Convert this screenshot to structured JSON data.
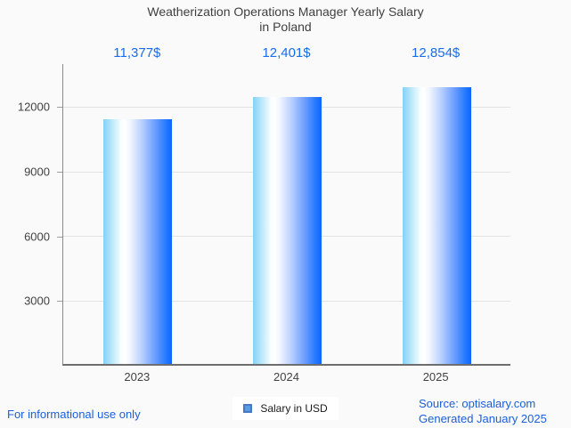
{
  "title": {
    "line1": "Weatherization Operations Manager Yearly Salary",
    "line2": "in Poland"
  },
  "chart_data": {
    "type": "bar",
    "categories": [
      "2023",
      "2024",
      "2025"
    ],
    "values": [
      11377,
      12401,
      12854
    ],
    "value_labels": [
      "11,377$",
      "12,401$",
      "12,854$"
    ],
    "series": [
      {
        "name": "Salary in USD",
        "values": [
          11377,
          12401,
          12854
        ]
      }
    ],
    "title": "Weatherization Operations Manager Yearly Salary in Poland",
    "xlabel": "",
    "ylabel": "",
    "yticks": [
      3000,
      6000,
      9000,
      12000
    ],
    "y_axis_max": 14000,
    "grid": true,
    "legend_position": "bottom-center"
  },
  "legend": {
    "label": "Salary in USD"
  },
  "footer": {
    "informational": "For informational use only",
    "source_line1": "Source: optisalary.com",
    "source_line2": "Generated January 2025"
  },
  "colors": {
    "accent_blue": "#1a6ce8",
    "footer_blue": "#1a5fdb",
    "text_dark": "#3f3f3f",
    "gridline": "#e3e3e3",
    "axis": "#8a8a8a",
    "legend_swatch_fill": "#5b9be0",
    "legend_swatch_border": "#4a78c2",
    "bar_gradient_stops": [
      "#82d2f6 0%",
      "#f8feff 26%",
      "#ffffff 32%",
      "#eef3ff 40%",
      "#bcd3ff 55%",
      "#6f9eff 75%",
      "#2278ff 92%",
      "#0d66ff 100%"
    ]
  }
}
